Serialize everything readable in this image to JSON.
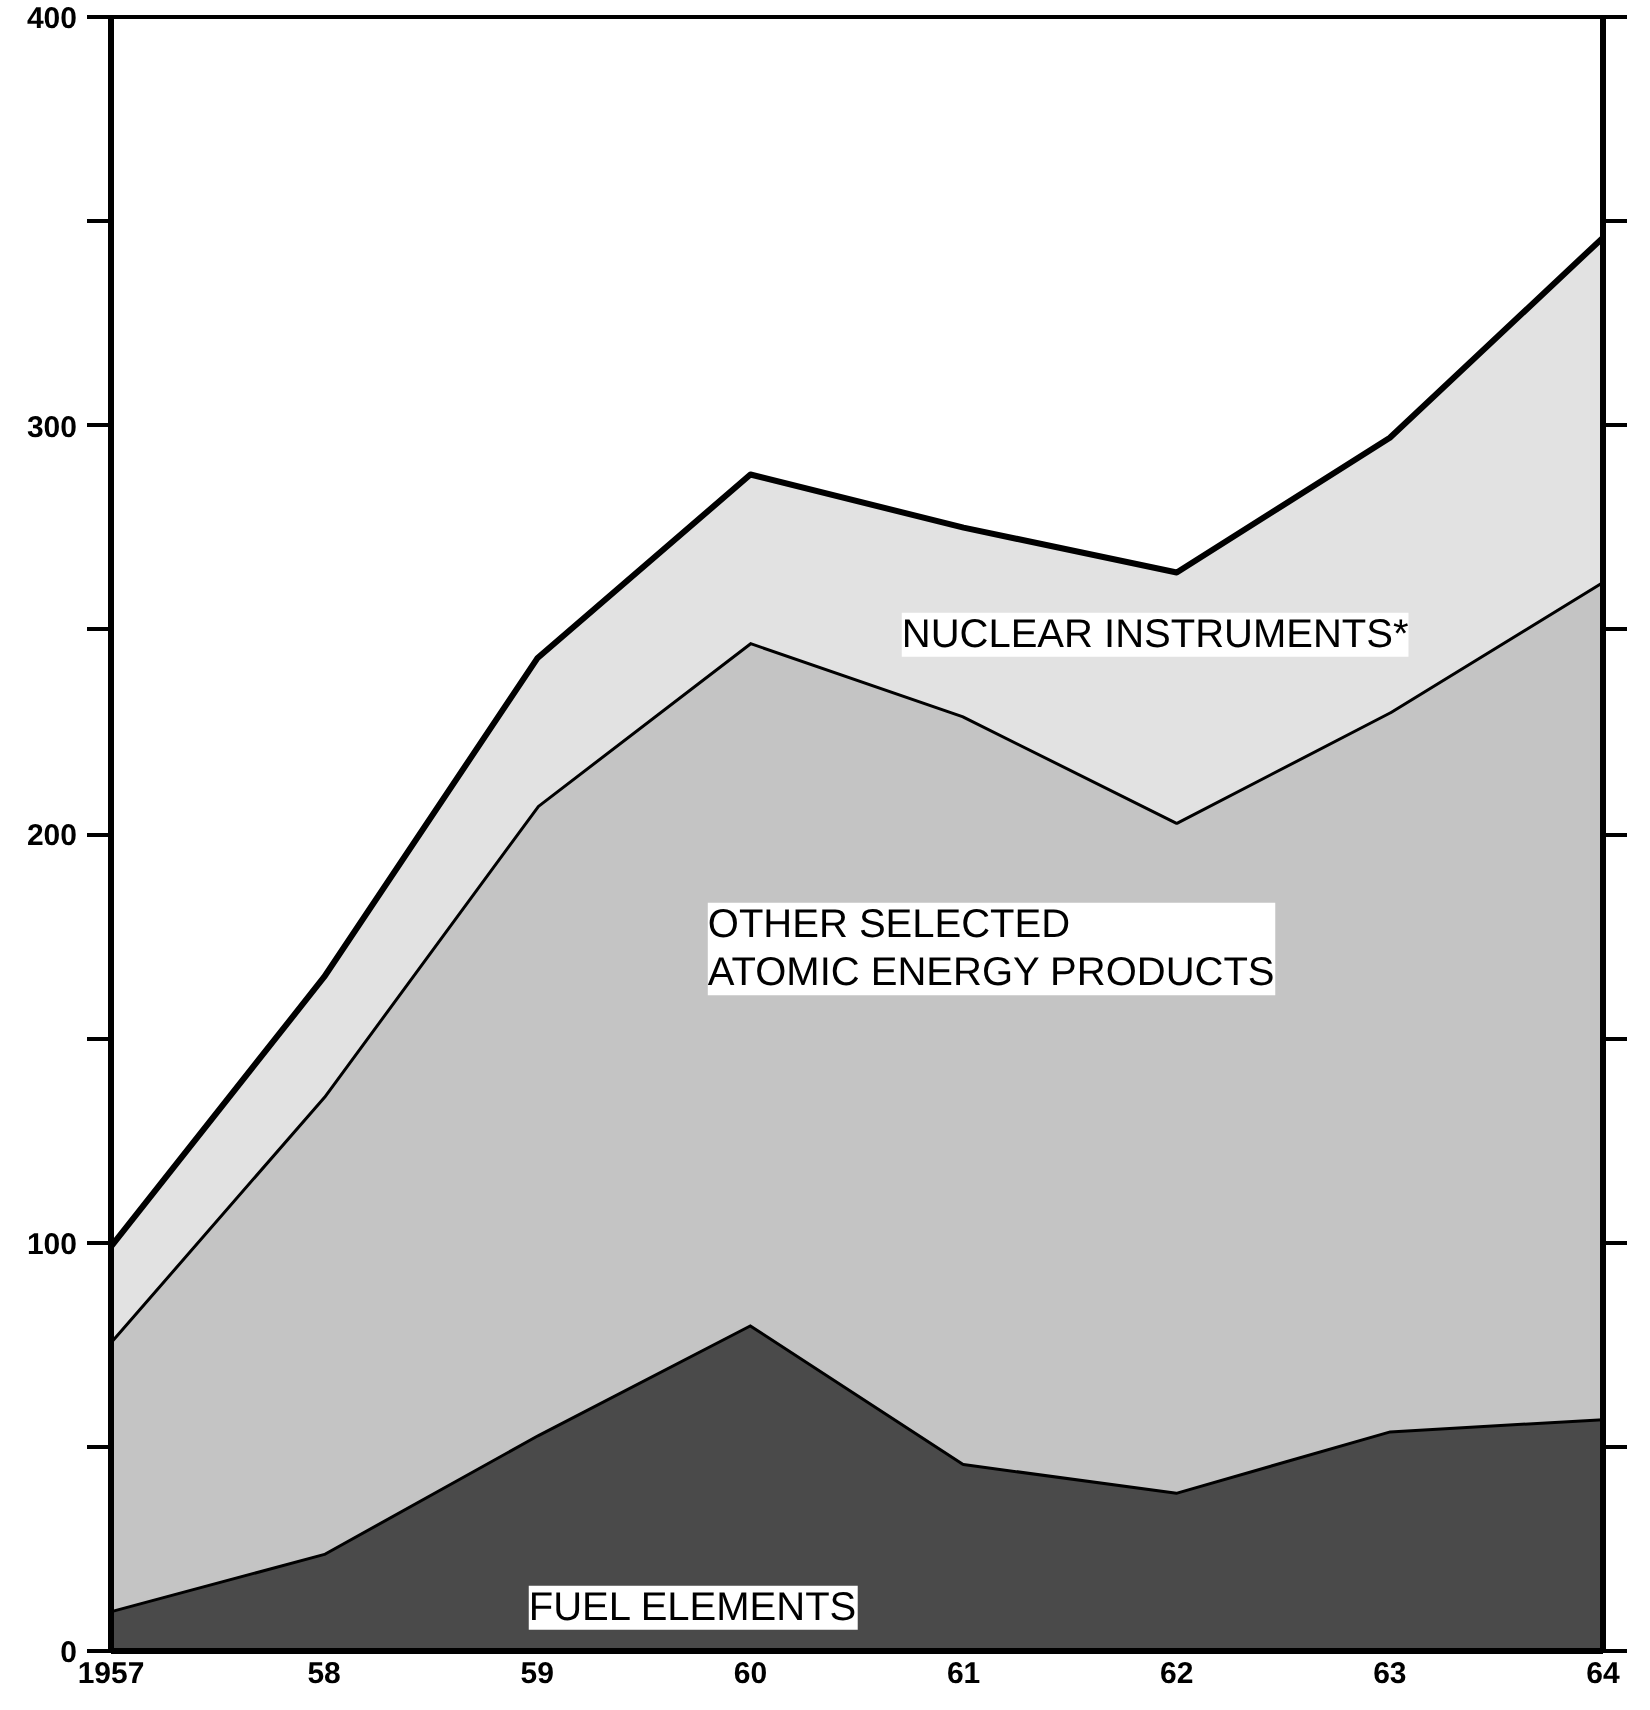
{
  "chart_data": {
    "type": "area",
    "stacked": true,
    "x": [
      1957,
      1958,
      1959,
      1960,
      1961,
      1962,
      1963,
      1964
    ],
    "series": [
      {
        "name": "FUEL ELEMENTS",
        "color": "#4a4a4a",
        "values": [
          10,
          24,
          53,
          80,
          46,
          39,
          54,
          57
        ]
      },
      {
        "name": "OTHER SELECTED\nATOMIC ENERGY PRODUCTS",
        "color": "#c4c4c4",
        "values": [
          66,
          112,
          154,
          167,
          183,
          164,
          176,
          205
        ]
      },
      {
        "name": "NUCLEAR INSTRUMENTS*",
        "color": "#e2e2e2",
        "values": [
          23,
          29,
          36,
          41,
          46,
          61,
          67,
          84
        ]
      }
    ],
    "xlim": [
      1957,
      1964
    ],
    "xticks": [
      1957,
      {
        "value": 1958,
        "label": "58"
      },
      {
        "value": 1959,
        "label": "59"
      },
      {
        "value": 1960,
        "label": "60"
      },
      {
        "value": 1961,
        "label": "61"
      },
      {
        "value": 1962,
        "label": "62"
      },
      {
        "value": 1963,
        "label": "63"
      },
      {
        "value": 1964,
        "label": "64"
      }
    ],
    "ylim": [
      0,
      400
    ],
    "yticks": [
      0,
      {
        "value": 50,
        "label": null
      },
      100,
      {
        "value": 150,
        "label": null
      },
      200,
      {
        "value": 250,
        "label": null
      },
      300,
      {
        "value": 350,
        "label": null
      },
      400
    ],
    "grid": false
  }
}
